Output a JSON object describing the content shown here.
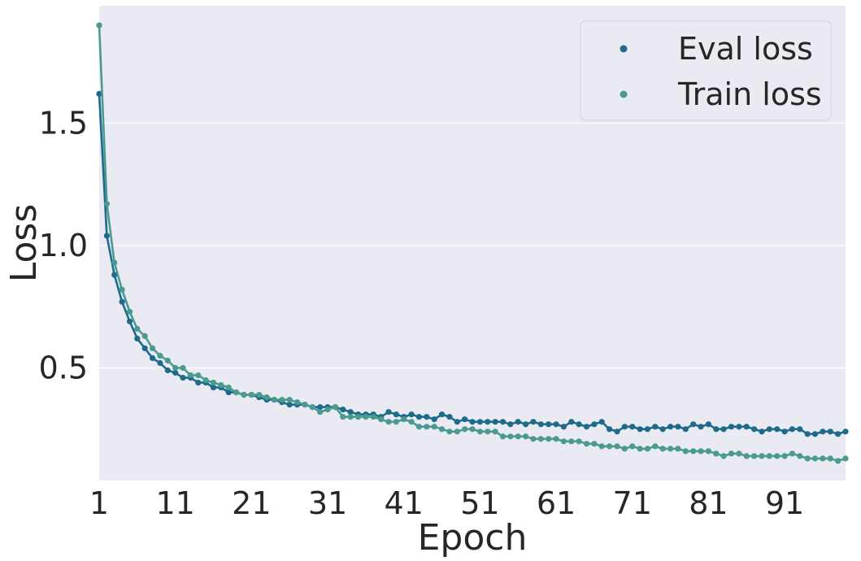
{
  "chart_data": {
    "type": "line",
    "title": "",
    "xlabel": "Epoch",
    "ylabel": "Loss",
    "xlim": [
      1,
      99
    ],
    "ylim": [
      0.04,
      1.98
    ],
    "xticks": [
      1,
      11,
      21,
      31,
      41,
      51,
      61,
      71,
      81,
      91
    ],
    "xtick_labels": [
      "1",
      "11",
      "21",
      "31",
      "41",
      "51",
      "61",
      "71",
      "81",
      "91"
    ],
    "yticks": [
      0.5,
      1.0,
      1.5
    ],
    "ytick_labels": [
      "0.5",
      "1.0",
      "1.5"
    ],
    "grid": true,
    "background": "#eaeaf2",
    "legend_position": "top-right",
    "x": [
      1,
      2,
      3,
      4,
      5,
      6,
      7,
      8,
      9,
      10,
      11,
      12,
      13,
      14,
      15,
      16,
      17,
      18,
      19,
      20,
      21,
      22,
      23,
      24,
      25,
      26,
      27,
      28,
      29,
      30,
      31,
      32,
      33,
      34,
      35,
      36,
      37,
      38,
      39,
      40,
      41,
      42,
      43,
      44,
      45,
      46,
      47,
      48,
      49,
      50,
      51,
      52,
      53,
      54,
      55,
      56,
      57,
      58,
      59,
      60,
      61,
      62,
      63,
      64,
      65,
      66,
      67,
      68,
      69,
      70,
      71,
      72,
      73,
      74,
      75,
      76,
      77,
      78,
      79,
      80,
      81,
      82,
      83,
      84,
      85,
      86,
      87,
      88,
      89,
      90,
      91,
      92,
      93,
      94,
      95,
      96,
      97,
      98,
      99
    ],
    "series": [
      {
        "name": "Eval loss",
        "color": "#1d6a8a",
        "values": [
          1.62,
          1.04,
          0.88,
          0.77,
          0.69,
          0.62,
          0.58,
          0.54,
          0.52,
          0.49,
          0.48,
          0.46,
          0.46,
          0.44,
          0.44,
          0.42,
          0.42,
          0.4,
          0.4,
          0.39,
          0.39,
          0.38,
          0.37,
          0.37,
          0.36,
          0.35,
          0.35,
          0.35,
          0.34,
          0.34,
          0.34,
          0.34,
          0.33,
          0.32,
          0.31,
          0.31,
          0.31,
          0.3,
          0.32,
          0.31,
          0.3,
          0.31,
          0.3,
          0.3,
          0.29,
          0.31,
          0.3,
          0.28,
          0.29,
          0.28,
          0.28,
          0.28,
          0.28,
          0.28,
          0.27,
          0.28,
          0.27,
          0.28,
          0.27,
          0.27,
          0.27,
          0.26,
          0.28,
          0.27,
          0.26,
          0.27,
          0.28,
          0.25,
          0.24,
          0.26,
          0.26,
          0.25,
          0.25,
          0.26,
          0.25,
          0.26,
          0.26,
          0.25,
          0.27,
          0.26,
          0.27,
          0.25,
          0.25,
          0.26,
          0.26,
          0.26,
          0.25,
          0.24,
          0.25,
          0.25,
          0.24,
          0.25,
          0.25,
          0.23,
          0.23,
          0.24,
          0.24,
          0.23,
          0.24
        ]
      },
      {
        "name": "Train loss",
        "color": "#4a9a8f",
        "values": [
          1.9,
          1.17,
          0.93,
          0.82,
          0.73,
          0.66,
          0.63,
          0.58,
          0.55,
          0.53,
          0.5,
          0.5,
          0.47,
          0.47,
          0.45,
          0.44,
          0.43,
          0.42,
          0.4,
          0.39,
          0.39,
          0.39,
          0.38,
          0.37,
          0.37,
          0.37,
          0.36,
          0.35,
          0.34,
          0.32,
          0.33,
          0.34,
          0.3,
          0.3,
          0.3,
          0.3,
          0.3,
          0.29,
          0.28,
          0.28,
          0.29,
          0.28,
          0.26,
          0.26,
          0.26,
          0.25,
          0.24,
          0.24,
          0.25,
          0.25,
          0.24,
          0.24,
          0.24,
          0.22,
          0.22,
          0.22,
          0.22,
          0.21,
          0.21,
          0.21,
          0.21,
          0.2,
          0.2,
          0.2,
          0.19,
          0.19,
          0.18,
          0.18,
          0.18,
          0.17,
          0.18,
          0.17,
          0.17,
          0.18,
          0.17,
          0.17,
          0.17,
          0.16,
          0.16,
          0.16,
          0.16,
          0.15,
          0.14,
          0.15,
          0.15,
          0.14,
          0.14,
          0.14,
          0.14,
          0.14,
          0.14,
          0.15,
          0.14,
          0.13,
          0.13,
          0.13,
          0.13,
          0.12,
          0.13
        ]
      }
    ]
  }
}
